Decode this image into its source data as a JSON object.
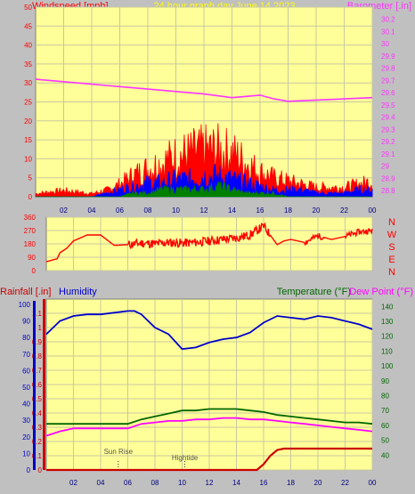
{
  "header": {
    "left_label": "Windspeed [mph]",
    "center_label": "24 hour graph day   June 14 2023",
    "right_label": "Barometer [.in]"
  },
  "colors": {
    "plot_bg": "#FFFF99",
    "frame_bg": "#C0C0C0",
    "grid": "#C8C8A0",
    "wind": "#FF0000",
    "gust": "#0000FF",
    "avg": "#008000",
    "barometer": "#FF33FF",
    "direction": "#FF0000",
    "humidity": "#0000CC",
    "temperature": "#006600",
    "dewpoint": "#FF00FF",
    "rainfall": "#CC0000",
    "title_yellow": "#FFFF00"
  },
  "x_ticks": [
    "02",
    "04",
    "06",
    "08",
    "10",
    "12",
    "14",
    "16",
    "18",
    "20",
    "22",
    "00"
  ],
  "chart_data": [
    {
      "type": "line",
      "name_panel": "wind-barometer",
      "y_left": {
        "label": "Windspeed [mph]",
        "range": [
          0,
          50
        ],
        "ticks": [
          "0",
          "5",
          "10",
          "15",
          "20",
          "25",
          "30",
          "35",
          "40",
          "45",
          "50"
        ]
      },
      "y_right": {
        "label": "Barometer [.in]",
        "range": [
          28.75,
          30.3
        ],
        "ticks": [
          "28.8",
          "28.9",
          "29",
          "29.1",
          "29.2",
          "29.3",
          "29.4",
          "29.5",
          "29.6",
          "29.7",
          "29.8",
          "29.9",
          "30",
          "30.1",
          "30.2"
        ]
      },
      "series": [
        {
          "key": "barometer",
          "axis": "right",
          "x": [
            0,
            2,
            4,
            6,
            8,
            10,
            12,
            14,
            15,
            16,
            17,
            18,
            20,
            22,
            24
          ],
          "y": [
            29.71,
            29.69,
            29.67,
            29.65,
            29.63,
            29.61,
            29.59,
            29.56,
            29.57,
            29.58,
            29.55,
            29.53,
            29.54,
            29.55,
            29.56
          ]
        }
      ],
      "wind_envelope": {
        "x": [
          0,
          2,
          4,
          5,
          6,
          7,
          8,
          9,
          10,
          11,
          12,
          13,
          14,
          15,
          16,
          17,
          18,
          19,
          20,
          21,
          22,
          23,
          24
        ],
        "gust": [
          1,
          2,
          1,
          2,
          4,
          7,
          9,
          11,
          13,
          14,
          15,
          15,
          14,
          11,
          8,
          6,
          5,
          4,
          3,
          3,
          3,
          4,
          5
        ],
        "speed": [
          0,
          0,
          0,
          1,
          2,
          3,
          4,
          4,
          5,
          5,
          6,
          6,
          5,
          4,
          3,
          2,
          2,
          2,
          1,
          1,
          1,
          2,
          2
        ],
        "average": [
          0,
          0,
          0,
          0,
          0,
          1,
          1,
          2,
          2,
          2,
          2,
          3,
          2,
          1,
          1,
          1,
          0,
          0,
          0,
          0,
          0,
          0,
          0
        ]
      }
    },
    {
      "type": "line",
      "name_panel": "wind-direction",
      "y_left": {
        "range": [
          0,
          360
        ],
        "ticks": [
          "0",
          "90",
          "180",
          "270",
          "360"
        ]
      },
      "y_right": {
        "ticks": [
          "N",
          "W",
          "S",
          "E",
          "N"
        ]
      },
      "series": [
        {
          "key": "direction",
          "x": [
            0,
            0.8,
            1,
            1.5,
            2,
            2.5,
            3,
            4,
            5,
            6,
            7,
            8,
            9,
            10,
            11,
            12,
            13,
            14,
            15,
            16,
            17,
            17.5,
            18,
            19,
            20,
            21,
            22,
            23,
            24
          ],
          "y": [
            60,
            80,
            120,
            150,
            200,
            220,
            240,
            240,
            170,
            175,
            185,
            180,
            190,
            185,
            190,
            200,
            210,
            220,
            240,
            300,
            175,
            200,
            210,
            190,
            235,
            210,
            230,
            260,
            270
          ]
        }
      ]
    },
    {
      "type": "line",
      "name_panel": "rain-humidity-temperature",
      "y_left": {
        "label_rain": "Rainfall [.in]",
        "label_humidity": "Humidity",
        "rain_ticks": [
          "0",
          "0.1",
          "0.2",
          "0.3",
          "0.4",
          "0.5",
          "0.6",
          "0.7",
          "0.8",
          "0.9",
          "1",
          "1.1"
        ],
        "humidity_ticks": [
          "0",
          "10",
          "20",
          "30",
          "40",
          "50",
          "60",
          "70",
          "80",
          "90",
          "100"
        ],
        "rain_range": [
          0,
          1.2
        ],
        "humidity_range": [
          0,
          100
        ]
      },
      "y_right": {
        "label_temp": "Temperature (°F)",
        "label_dew": "Dew Point (°F)",
        "range": [
          30,
          145
        ],
        "ticks": [
          "40",
          "50",
          "60",
          "70",
          "80",
          "90",
          "100",
          "110",
          "120",
          "130",
          "140"
        ]
      },
      "annotations": [
        {
          "text": "Sun Rise",
          "x": 5.3
        },
        {
          "text": "Hightide",
          "x": 10.2
        }
      ],
      "series": [
        {
          "key": "humidity",
          "axis": "humidity",
          "x": [
            0,
            1,
            2,
            3,
            4,
            5,
            6,
            6.5,
            7,
            8,
            9,
            10,
            11,
            12,
            13,
            14,
            15,
            16,
            17,
            18,
            19,
            20,
            21,
            22,
            23,
            24
          ],
          "y": [
            82,
            90,
            93,
            94,
            94,
            95,
            96,
            96,
            94,
            86,
            82,
            73,
            74,
            77,
            79,
            80,
            83,
            89,
            93,
            92,
            91,
            93,
            92,
            90,
            88,
            85
          ]
        },
        {
          "key": "temperature",
          "axis": "temp",
          "x": [
            0,
            2,
            4,
            6,
            7,
            8,
            9,
            10,
            11,
            12,
            13,
            14,
            15,
            16,
            17,
            18,
            19,
            20,
            21,
            22,
            23,
            24
          ],
          "y": [
            61,
            61,
            61,
            61,
            64,
            66,
            68,
            70,
            70,
            71,
            71,
            71,
            70,
            69,
            67,
            66,
            65,
            64,
            63,
            62,
            62,
            61
          ]
        },
        {
          "key": "dewpoint",
          "axis": "temp",
          "x": [
            0,
            1,
            2,
            4,
            6,
            7,
            8,
            9,
            10,
            11,
            12,
            13,
            14,
            15,
            16,
            17,
            18,
            19,
            20,
            21,
            22,
            23,
            24
          ],
          "y": [
            53,
            56,
            58,
            58,
            58,
            61,
            62,
            63,
            63,
            64,
            64,
            65,
            65,
            64,
            64,
            63,
            62,
            61,
            60,
            59,
            58,
            57,
            56
          ]
        },
        {
          "key": "rainfall",
          "axis": "rain",
          "x": [
            0,
            15.5,
            16,
            16.5,
            17,
            17.5,
            20.5,
            24
          ],
          "y": [
            0,
            0,
            0.04,
            0.1,
            0.14,
            0.15,
            0.15,
            0.15
          ]
        }
      ]
    }
  ]
}
